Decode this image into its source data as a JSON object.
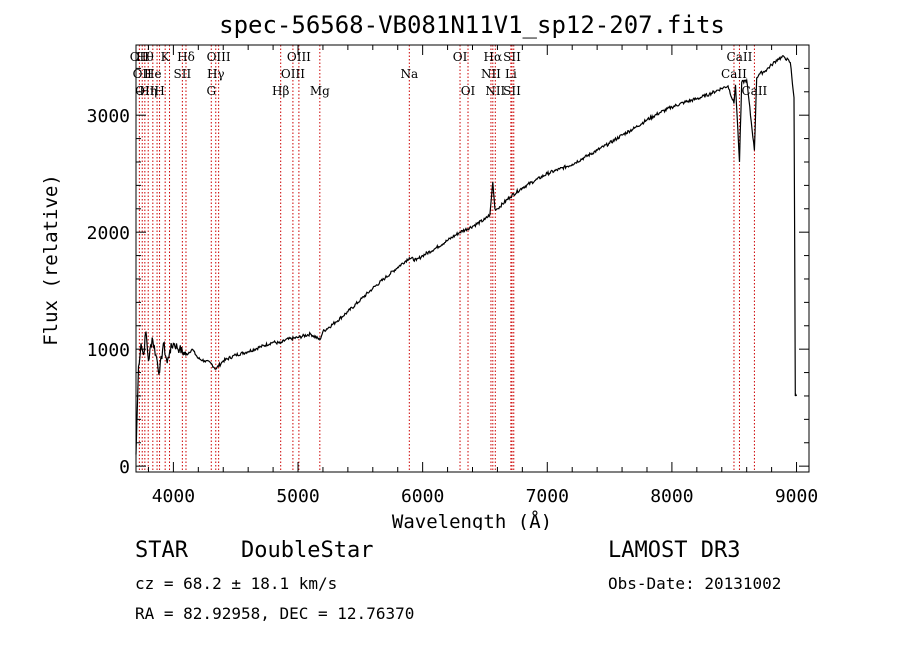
{
  "chart_data": {
    "type": "line",
    "title": "spec-56568-VB081N11V1_sp12-207.fits",
    "xlabel": "Wavelength (Å)",
    "ylabel": "Flux (relative)",
    "xlim": [
      3700,
      9100
    ],
    "ylim": [
      -50,
      3600
    ],
    "xticks": [
      4000,
      5000,
      6000,
      7000,
      8000,
      9000
    ],
    "yticks": [
      0,
      1000,
      2000,
      3000
    ],
    "series": [
      {
        "name": "flux",
        "x": [
          3700,
          3720,
          3740,
          3760,
          3780,
          3800,
          3830,
          3860,
          3889,
          3920,
          3950,
          3970,
          4000,
          4050,
          4101,
          4150,
          4200,
          4250,
          4300,
          4340,
          4400,
          4500,
          4600,
          4700,
          4800,
          4861,
          4900,
          5000,
          5100,
          5175,
          5200,
          5300,
          5400,
          5500,
          5600,
          5700,
          5800,
          5893,
          5950,
          6000,
          6100,
          6200,
          6300,
          6400,
          6500,
          6540,
          6563,
          6580,
          6600,
          6700,
          6800,
          6900,
          7000,
          7100,
          7200,
          7300,
          7400,
          7500,
          7600,
          7700,
          7800,
          7900,
          8000,
          8100,
          8200,
          8300,
          8400,
          8450,
          8498,
          8510,
          8542,
          8560,
          8600,
          8662,
          8680,
          8700,
          8750,
          8800,
          8850,
          8900,
          8950,
          8980,
          8990,
          9000
        ],
        "values": [
          100,
          850,
          1050,
          950,
          1150,
          900,
          1100,
          950,
          800,
          1050,
          880,
          980,
          1050,
          1000,
          950,
          1000,
          920,
          900,
          880,
          830,
          900,
          950,
          980,
          1020,
          1060,
          1050,
          1080,
          1100,
          1130,
          1080,
          1150,
          1230,
          1320,
          1420,
          1520,
          1610,
          1700,
          1780,
          1760,
          1800,
          1860,
          1930,
          2000,
          2050,
          2110,
          2150,
          2430,
          2200,
          2200,
          2300,
          2380,
          2440,
          2500,
          2540,
          2580,
          2640,
          2700,
          2760,
          2830,
          2890,
          2960,
          3020,
          3070,
          3110,
          3140,
          3180,
          3230,
          3250,
          3100,
          3260,
          2600,
          3280,
          3300,
          2700,
          3320,
          3350,
          3380,
          3430,
          3480,
          3500,
          3450,
          3150,
          600,
          600
        ]
      }
    ],
    "lines": [
      {
        "x": 3727,
        "top": "OII",
        "mid": "",
        "bot": ""
      },
      {
        "x": 3750,
        "top": "",
        "mid": "OII",
        "bot": ""
      },
      {
        "x": 3771,
        "top": "Hθ",
        "mid": "",
        "bot": "OII"
      },
      {
        "x": 3798,
        "top": "",
        "mid": "",
        "bot": "Hη"
      },
      {
        "x": 3835,
        "top": "",
        "mid": "He",
        "bot": ""
      },
      {
        "x": 3869,
        "top": "",
        "mid": "",
        "bot": ""
      },
      {
        "x": 3889,
        "top": "",
        "mid": "",
        "bot": "H"
      },
      {
        "x": 3934,
        "top": "K",
        "mid": "",
        "bot": ""
      },
      {
        "x": 3969,
        "top": "",
        "mid": "",
        "bot": ""
      },
      {
        "x": 4072,
        "top": "",
        "mid": "SII",
        "bot": ""
      },
      {
        "x": 4101,
        "top": "Hδ",
        "mid": "",
        "bot": ""
      },
      {
        "x": 4304,
        "top": "",
        "mid": "",
        "bot": "G"
      },
      {
        "x": 4340,
        "top": "",
        "mid": "Hγ",
        "bot": ""
      },
      {
        "x": 4363,
        "top": "OIII",
        "mid": "",
        "bot": ""
      },
      {
        "x": 4861,
        "top": "",
        "mid": "",
        "bot": "Hβ"
      },
      {
        "x": 4959,
        "top": "",
        "mid": "OIII",
        "bot": ""
      },
      {
        "x": 5007,
        "top": "OIII",
        "mid": "",
        "bot": ""
      },
      {
        "x": 5175,
        "top": "",
        "mid": "",
        "bot": "Mg"
      },
      {
        "x": 5893,
        "top": "",
        "mid": "Na",
        "bot": ""
      },
      {
        "x": 6300,
        "top": "OI",
        "mid": "",
        "bot": ""
      },
      {
        "x": 6364,
        "top": "",
        "mid": "",
        "bot": "OI"
      },
      {
        "x": 6548,
        "top": "",
        "mid": "NII",
        "bot": ""
      },
      {
        "x": 6563,
        "top": "Hα",
        "mid": "",
        "bot": ""
      },
      {
        "x": 6583,
        "top": "",
        "mid": "",
        "bot": "NII"
      },
      {
        "x": 6708,
        "top": "",
        "mid": "Li",
        "bot": ""
      },
      {
        "x": 6717,
        "top": "SII",
        "mid": "",
        "bot": "SII"
      },
      {
        "x": 6731,
        "top": "",
        "mid": "",
        "bot": ""
      },
      {
        "x": 8498,
        "top": "",
        "mid": "CaII",
        "bot": ""
      },
      {
        "x": 8542,
        "top": "CaII",
        "mid": "",
        "bot": ""
      },
      {
        "x": 8662,
        "top": "",
        "mid": "",
        "bot": "CaII"
      }
    ]
  },
  "footer": {
    "object_class": "STAR",
    "subclass": "DoubleStar",
    "survey": "LAMOST DR3",
    "cz": "cz = 68.2 ± 18.1 km/s",
    "obs_date": "Obs-Date: 20131002",
    "coords": "RA =  82.92958, DEC =  12.76370"
  },
  "colors": {
    "line_marker": "#cc0000",
    "spectrum": "#000000",
    "axes": "#000000"
  }
}
